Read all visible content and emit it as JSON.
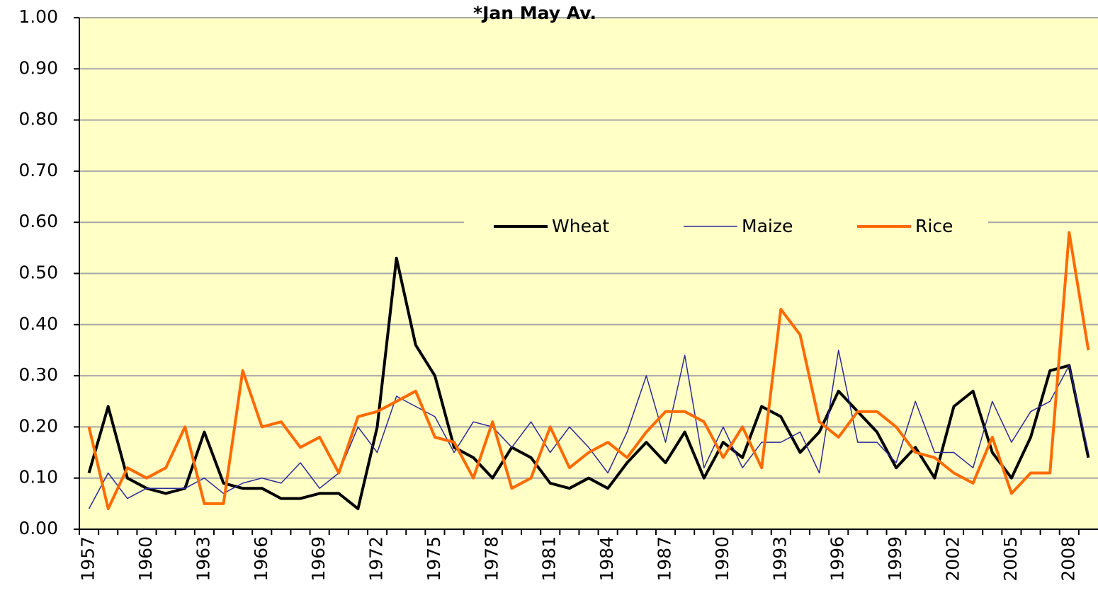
{
  "chart_data": {
    "type": "line",
    "title": "*Jan May Av.",
    "categories": [
      "1957",
      null,
      null,
      "1960",
      null,
      null,
      "1963",
      null,
      null,
      "1966",
      null,
      null,
      "1969",
      null,
      null,
      "1972",
      null,
      null,
      "1975",
      null,
      null,
      "1978",
      null,
      null,
      "1981",
      null,
      null,
      "1984",
      null,
      null,
      "1987",
      null,
      null,
      "1990",
      null,
      null,
      "1993",
      null,
      null,
      "1996",
      null,
      null,
      "1999",
      null,
      null,
      "2002",
      null,
      null,
      "2005",
      null,
      null,
      "2008",
      null
    ],
    "series": [
      {
        "name": "Wheat",
        "color": "#000000",
        "width": 4,
        "values": [
          0.11,
          0.24,
          0.1,
          0.08,
          0.07,
          0.08,
          0.19,
          0.09,
          0.08,
          0.08,
          0.06,
          0.06,
          0.07,
          0.07,
          0.04,
          0.2,
          0.53,
          0.36,
          0.3,
          0.16,
          0.14,
          0.1,
          0.16,
          0.14,
          0.09,
          0.08,
          0.1,
          0.08,
          0.13,
          0.17,
          0.13,
          0.19,
          0.1,
          0.17,
          0.14,
          0.24,
          0.22,
          0.15,
          0.19,
          0.27,
          0.23,
          0.19,
          0.12,
          0.16,
          0.1,
          0.24,
          0.27,
          0.15,
          0.1,
          0.18,
          0.31,
          0.32,
          0.14
        ]
      },
      {
        "name": "Maize",
        "color": "#2b2b99",
        "width": 1.5,
        "values": [
          0.04,
          0.11,
          0.06,
          0.08,
          0.08,
          0.08,
          0.1,
          0.07,
          0.09,
          0.1,
          0.09,
          0.13,
          0.08,
          0.11,
          0.2,
          0.15,
          0.26,
          0.24,
          0.22,
          0.15,
          0.21,
          0.2,
          0.16,
          0.21,
          0.15,
          0.2,
          0.16,
          0.11,
          0.19,
          0.3,
          0.17,
          0.34,
          0.12,
          0.2,
          0.12,
          0.17,
          0.17,
          0.19,
          0.11,
          0.35,
          0.17,
          0.17,
          0.13,
          0.25,
          0.15,
          0.15,
          0.12,
          0.25,
          0.17,
          0.23,
          0.25,
          0.32,
          0.15
        ]
      },
      {
        "name": "Rice",
        "color": "#ff6a00",
        "width": 4,
        "values": [
          0.2,
          0.04,
          0.12,
          0.1,
          0.12,
          0.2,
          0.05,
          0.05,
          0.31,
          0.2,
          0.21,
          0.16,
          0.18,
          0.11,
          0.22,
          0.23,
          0.25,
          0.27,
          0.18,
          0.17,
          0.1,
          0.21,
          0.08,
          0.1,
          0.2,
          0.12,
          0.15,
          0.17,
          0.14,
          0.19,
          0.23,
          0.23,
          0.21,
          0.14,
          0.2,
          0.12,
          0.43,
          0.38,
          0.21,
          0.18,
          0.23,
          0.23,
          0.2,
          0.15,
          0.14,
          0.11,
          0.09,
          0.18,
          0.07,
          0.11,
          0.11,
          0.58,
          0.35
        ]
      }
    ],
    "ylim": [
      0,
      1
    ],
    "yticks": [
      {
        "value": 0,
        "label": "0.00"
      },
      {
        "value": 0.1,
        "label": "0.10"
      },
      {
        "value": 0.2,
        "label": "0.20"
      },
      {
        "value": 0.3,
        "label": "0.30"
      },
      {
        "value": 0.4,
        "label": "0.40"
      },
      {
        "value": 0.5,
        "label": "0.50"
      },
      {
        "value": 0.6,
        "label": "0.60"
      },
      {
        "value": 0.7,
        "label": "0.70"
      },
      {
        "value": 0.8,
        "label": "0.80"
      },
      {
        "value": 0.9,
        "label": "0.90"
      },
      {
        "value": 1,
        "label": "1.00"
      }
    ],
    "grid": true
  }
}
